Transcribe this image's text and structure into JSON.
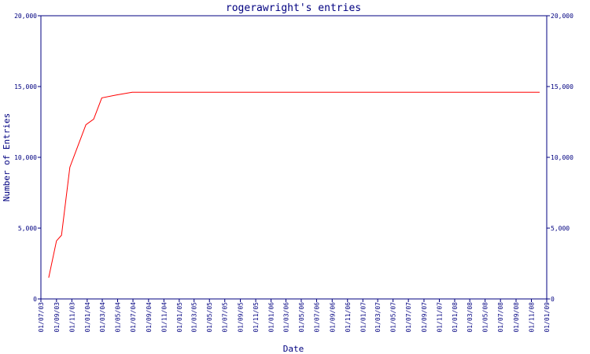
{
  "chart_data": {
    "type": "line",
    "title": "rogerawright's entries",
    "xlabel": "Date",
    "ylabel": "Number of Entries",
    "xlim": [
      "01/07/03",
      "01/01/09"
    ],
    "xticks": [
      "01/07/03",
      "01/09/03",
      "01/11/03",
      "01/01/04",
      "01/03/04",
      "01/05/04",
      "01/07/04",
      "01/09/04",
      "01/11/04",
      "01/01/05",
      "01/03/05",
      "01/05/05",
      "01/07/05",
      "01/09/05",
      "01/11/05",
      "01/01/06",
      "01/03/06",
      "01/05/06",
      "01/07/06",
      "01/09/06",
      "01/11/06",
      "01/01/07",
      "01/03/07",
      "01/05/07",
      "01/07/07",
      "01/09/07",
      "01/11/07",
      "01/01/08",
      "01/03/08",
      "01/05/08",
      "01/07/08",
      "01/09/08",
      "01/11/08",
      "01/01/09"
    ],
    "ylim": [
      0,
      20000
    ],
    "yticks": [
      0,
      {
        "value": 5000,
        "label": "5,000"
      },
      {
        "value": 10000,
        "label": "10,000"
      },
      {
        "value": 15000,
        "label": "15,000"
      },
      {
        "value": 20000,
        "label": "20,000"
      }
    ],
    "axis_color": "#000080",
    "series": [
      {
        "color": "#ff0000",
        "x": [
          "01/08/03",
          "01/09/03",
          "21/09/03",
          "24/10/03",
          "25/11/03",
          "27/12/03",
          "27/01/04",
          "28/02/04",
          "26/04/04",
          "28/06/04",
          "04/12/08"
        ],
        "values": [
          1500,
          4100,
          4500,
          9300,
          10800,
          12300,
          12700,
          14200,
          14400,
          14600,
          14600
        ]
      }
    ]
  }
}
